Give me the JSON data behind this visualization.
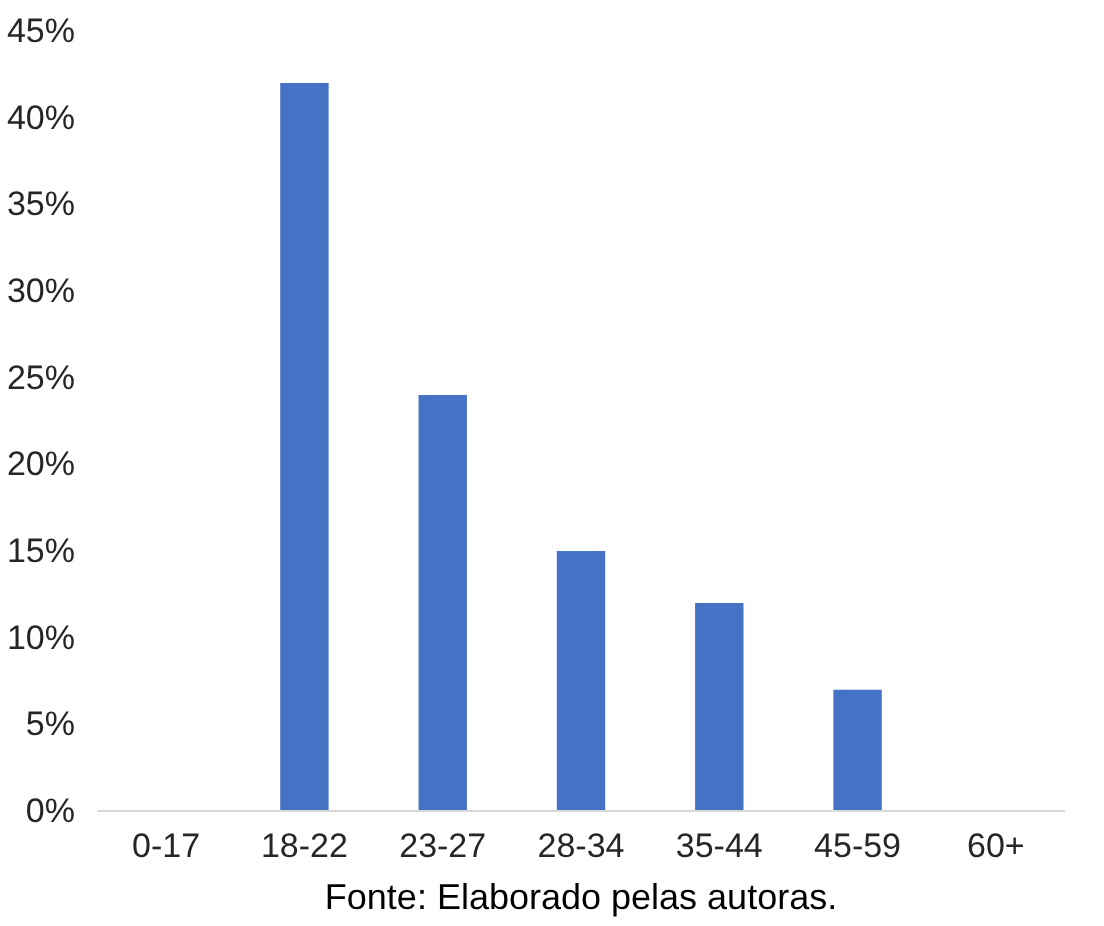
{
  "chart_data": {
    "type": "bar",
    "categories": [
      "0-17",
      "18-22",
      "23-27",
      "28-34",
      "35-44",
      "45-59",
      "60+"
    ],
    "values": [
      0,
      42,
      24,
      15,
      12,
      7,
      0
    ],
    "color": "#4472c4",
    "ylim": [
      0,
      45
    ],
    "yticks": [
      {
        "value": 0,
        "label": "0%"
      },
      {
        "value": 5,
        "label": "5%"
      },
      {
        "value": 10,
        "label": "10%"
      },
      {
        "value": 15,
        "label": "15%"
      },
      {
        "value": 20,
        "label": "20%"
      },
      {
        "value": 25,
        "label": "25%"
      },
      {
        "value": 30,
        "label": "30%"
      },
      {
        "value": 35,
        "label": "35%"
      },
      {
        "value": 40,
        "label": "40%"
      },
      {
        "value": 45,
        "label": "45%"
      }
    ],
    "grid": false,
    "annotations": [
      "Fonte: Elaborado pelas autoras."
    ]
  }
}
